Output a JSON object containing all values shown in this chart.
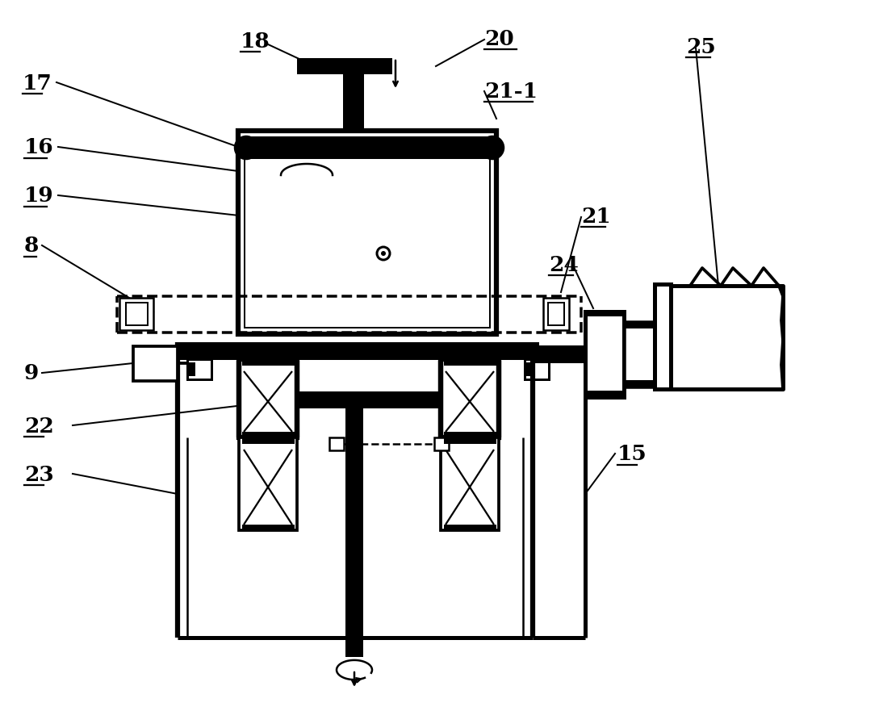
{
  "bg": "#ffffff",
  "lc": "#000000",
  "lw": 1.8,
  "tlw": 4.5
}
